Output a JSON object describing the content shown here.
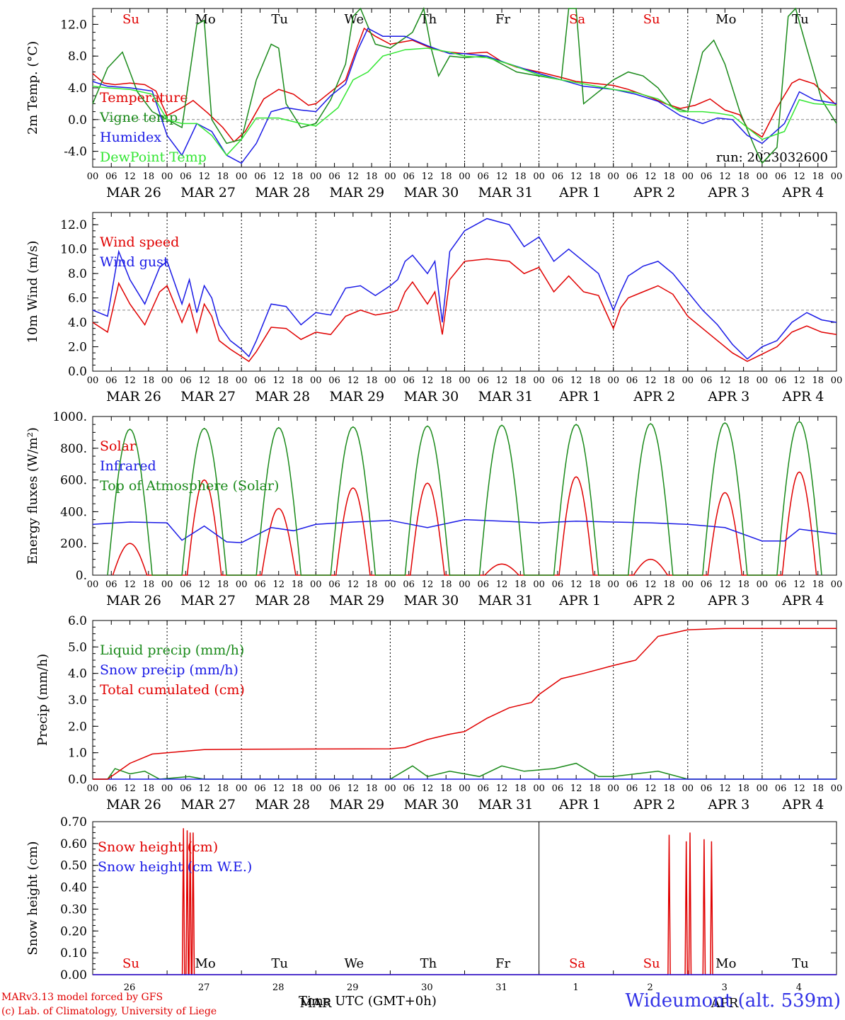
{
  "colors": {
    "red": "#e00000",
    "green": "#1a8a1a",
    "blue": "#1a1ae6",
    "lightgreen": "#33e633",
    "sandbox_ref": "#3232e6"
  },
  "days_top": [
    {
      "label": "Su",
      "color": "#e00000"
    },
    {
      "label": "Mo",
      "color": "#000000"
    },
    {
      "label": "Tu",
      "color": "#000000"
    },
    {
      "label": "We",
      "color": "#000000"
    },
    {
      "label": "Th",
      "color": "#000000"
    },
    {
      "label": "Fr",
      "color": "#000000"
    },
    {
      "label": "Sa",
      "color": "#e00000"
    },
    {
      "label": "Su",
      "color": "#e00000"
    },
    {
      "label": "Mo",
      "color": "#000000"
    },
    {
      "label": "Tu",
      "color": "#000000"
    }
  ],
  "date_labels": [
    "MAR 26",
    "MAR 27",
    "MAR 28",
    "MAR 29",
    "MAR 30",
    "MAR 31",
    "APR  1",
    "APR  2",
    "APR  3",
    "APR  4"
  ],
  "hour_ticks": [
    "00",
    "06",
    "12",
    "18"
  ],
  "hour_end": "00",
  "bottom_day_numbers": [
    "26",
    "27",
    "28",
    "29",
    "30",
    "31",
    "1",
    "2",
    "3",
    "4"
  ],
  "bottom_month_labels": [
    "MAR",
    "APR"
  ],
  "footer": {
    "model_line": "MARv3.13 model forced by GFS",
    "lab_line": "(c) Lab. of Climatology, University of Liege",
    "xaxis_label": "Time UTC (GMT+0h)",
    "station": "Wideumont (alt. 539m)"
  },
  "chart_data": [
    {
      "type": "line",
      "ylabel": "2m Temp. (°C)",
      "ylim": [
        -6,
        14
      ],
      "yticks": [
        "-4.0",
        "0.0",
        "4.0",
        "8.0",
        "12.0"
      ],
      "yticks_v": [
        -4,
        0,
        4,
        8,
        12
      ],
      "ref_line": 0,
      "annotation": "run: 2023032600",
      "x_days": [
        0,
        10
      ],
      "series": [
        {
          "name": "Temperature",
          "color": "#e00000",
          "x": [
            0,
            0.15,
            0.3,
            0.5,
            0.7,
            0.85,
            1.0,
            1.2,
            1.35,
            1.55,
            1.75,
            1.9,
            2.05,
            2.3,
            2.5,
            2.7,
            2.9,
            3.0,
            3.2,
            3.4,
            3.55,
            3.65,
            3.8,
            4.0,
            4.3,
            4.5,
            4.7,
            5.0,
            5.3,
            5.5,
            5.7,
            6.0,
            6.3,
            6.5,
            6.7,
            7.0,
            7.2,
            7.5,
            7.7,
            7.9,
            8.1,
            8.3,
            8.5,
            8.7,
            8.8,
            9.0,
            9.2,
            9.4,
            9.5,
            9.7,
            10.0
          ],
          "y": [
            5.8,
            4.6,
            4.4,
            4.6,
            4.4,
            3.6,
            0.5,
            1.5,
            2.4,
            0.8,
            -1.0,
            -2.8,
            -1.5,
            2.6,
            3.8,
            3.2,
            1.8,
            2.0,
            3.5,
            5.0,
            9.0,
            11.5,
            10.5,
            9.5,
            10.0,
            9.2,
            8.6,
            8.3,
            8.5,
            7.3,
            6.6,
            6.0,
            5.3,
            4.8,
            4.6,
            4.3,
            3.8,
            2.8,
            2.0,
            1.4,
            1.8,
            2.6,
            1.2,
            0.6,
            -1.0,
            -2.2,
            1.5,
            4.6,
            5.1,
            4.5,
            1.8
          ]
        },
        {
          "name": "Vigne temp",
          "color": "#1a8a1a",
          "x": [
            0,
            0.2,
            0.4,
            0.5,
            0.6,
            0.8,
            1.0,
            1.2,
            1.4,
            1.5,
            1.6,
            1.8,
            2.0,
            2.2,
            2.4,
            2.5,
            2.6,
            2.8,
            3.0,
            3.2,
            3.4,
            3.5,
            3.6,
            3.8,
            4.0,
            4.3,
            4.45,
            4.55,
            4.65,
            4.8,
            5.0,
            5.3,
            5.5,
            5.7,
            6.0,
            6.3,
            6.4,
            6.5,
            6.6,
            6.8,
            7.0,
            7.2,
            7.4,
            7.6,
            7.8,
            8.0,
            8.2,
            8.35,
            8.5,
            8.7,
            8.9,
            9.0,
            9.2,
            9.35,
            9.45,
            9.6,
            9.8,
            10.0
          ],
          "y": [
            2.0,
            6.5,
            8.5,
            6.0,
            3.5,
            1.0,
            0.0,
            -1.0,
            12.0,
            12.5,
            0.0,
            -3.0,
            -2.5,
            5.0,
            9.5,
            9.0,
            2.0,
            -1.0,
            -0.5,
            2.5,
            7.0,
            13.0,
            14.0,
            9.5,
            9.0,
            11.0,
            14.0,
            9.0,
            5.5,
            8.0,
            7.8,
            8.0,
            7.0,
            6.0,
            5.5,
            5.0,
            14.0,
            14.0,
            2.0,
            3.5,
            5.0,
            6.0,
            5.5,
            4.0,
            1.5,
            1.0,
            8.5,
            10.0,
            7.0,
            1.0,
            -3.5,
            -5.5,
            -3.5,
            13.0,
            14.0,
            9.0,
            2.5,
            -0.5
          ]
        },
        {
          "name": "Humidex",
          "color": "#1a1ae6",
          "x": [
            0,
            0.2,
            0.5,
            0.8,
            1.0,
            1.2,
            1.4,
            1.6,
            1.8,
            2.0,
            2.2,
            2.4,
            2.6,
            2.8,
            3.0,
            3.2,
            3.4,
            3.55,
            3.7,
            3.9,
            4.2,
            4.5,
            4.8,
            5.0,
            5.3,
            5.6,
            6.0,
            6.3,
            6.6,
            7.0,
            7.3,
            7.6,
            7.9,
            8.2,
            8.4,
            8.6,
            8.8,
            9.0,
            9.3,
            9.5,
            9.7,
            10.0
          ],
          "y": [
            4.8,
            4.2,
            4.0,
            3.6,
            -2.0,
            -4.5,
            -0.5,
            -1.5,
            -4.5,
            -5.5,
            -3.0,
            1.0,
            1.5,
            1.2,
            1.0,
            3.0,
            4.5,
            8.5,
            11.5,
            10.5,
            10.5,
            9.3,
            8.3,
            8.3,
            8.0,
            7.0,
            5.8,
            5.0,
            4.2,
            3.8,
            3.2,
            2.3,
            0.5,
            -0.5,
            0.2,
            0.0,
            -2.0,
            -3.0,
            -0.5,
            3.5,
            2.5,
            2.0
          ]
        },
        {
          "name": "DewPoint Temp",
          "color": "#33e633",
          "x": [
            0,
            0.2,
            0.5,
            0.8,
            1.0,
            1.2,
            1.4,
            1.6,
            1.8,
            2.0,
            2.2,
            2.5,
            2.8,
            3.0,
            3.3,
            3.5,
            3.7,
            3.9,
            4.2,
            4.5,
            4.8,
            5.0,
            5.3,
            5.6,
            6.0,
            6.3,
            6.6,
            7.0,
            7.3,
            7.6,
            7.9,
            8.2,
            8.4,
            8.6,
            8.8,
            9.0,
            9.3,
            9.5,
            9.7,
            10.0
          ],
          "y": [
            4.2,
            4.0,
            3.8,
            3.2,
            0.0,
            -0.5,
            -0.5,
            -2.0,
            -4.5,
            -2.5,
            0.2,
            0.2,
            -0.5,
            -0.8,
            1.5,
            5.0,
            6.0,
            8.0,
            8.8,
            9.0,
            8.5,
            8.0,
            7.8,
            7.0,
            5.6,
            5.0,
            4.5,
            3.8,
            3.4,
            2.6,
            1.0,
            1.0,
            0.8,
            0.5,
            -1.0,
            -2.5,
            -1.5,
            2.5,
            2.0,
            1.8
          ]
        }
      ]
    },
    {
      "type": "line",
      "ylabel": "10m Wind (m/s)",
      "ylim": [
        0,
        13
      ],
      "yticks": [
        "0.0",
        "2.0",
        "4.0",
        "6.0",
        "8.0",
        "10.0",
        "12.0"
      ],
      "yticks_v": [
        0,
        2,
        4,
        6,
        8,
        10,
        12
      ],
      "ref_line": 5,
      "x_days": [
        0,
        10
      ],
      "series": [
        {
          "name": "Wind speed",
          "color": "#e00000",
          "x": [
            0,
            0.2,
            0.35,
            0.5,
            0.7,
            0.9,
            1.0,
            1.2,
            1.3,
            1.4,
            1.5,
            1.6,
            1.7,
            1.85,
            2.0,
            2.1,
            2.2,
            2.4,
            2.6,
            2.8,
            3.0,
            3.2,
            3.4,
            3.6,
            3.8,
            4.0,
            4.1,
            4.2,
            4.3,
            4.5,
            4.6,
            4.7,
            4.8,
            5.0,
            5.3,
            5.6,
            5.8,
            6.0,
            6.2,
            6.4,
            6.6,
            6.8,
            7.0,
            7.1,
            7.2,
            7.4,
            7.6,
            7.8,
            8.0,
            8.2,
            8.4,
            8.6,
            8.8,
            9.0,
            9.2,
            9.4,
            9.6,
            9.8,
            10.0
          ],
          "y": [
            4.0,
            3.2,
            7.2,
            5.5,
            3.8,
            6.5,
            7.0,
            4.0,
            5.5,
            3.2,
            5.5,
            4.5,
            2.5,
            1.8,
            1.2,
            0.8,
            1.6,
            3.6,
            3.5,
            2.6,
            3.2,
            3.0,
            4.5,
            5.0,
            4.6,
            4.8,
            5.0,
            6.5,
            7.3,
            5.5,
            6.5,
            3.0,
            7.5,
            9.0,
            9.2,
            9.0,
            8.0,
            8.5,
            6.5,
            7.8,
            6.5,
            6.2,
            3.5,
            5.2,
            6.0,
            6.5,
            7.0,
            6.3,
            4.5,
            3.5,
            2.5,
            1.5,
            0.8,
            1.4,
            2.0,
            3.2,
            3.7,
            3.2,
            3.0
          ]
        },
        {
          "name": "Wind gust",
          "color": "#1a1ae6",
          "x": [
            0,
            0.2,
            0.35,
            0.5,
            0.7,
            0.9,
            1.0,
            1.2,
            1.3,
            1.4,
            1.5,
            1.6,
            1.7,
            1.85,
            2.0,
            2.1,
            2.2,
            2.4,
            2.6,
            2.8,
            3.0,
            3.2,
            3.4,
            3.6,
            3.8,
            4.0,
            4.1,
            4.2,
            4.3,
            4.5,
            4.6,
            4.7,
            4.8,
            5.0,
            5.3,
            5.6,
            5.8,
            6.0,
            6.2,
            6.4,
            6.6,
            6.8,
            7.0,
            7.1,
            7.2,
            7.4,
            7.6,
            7.8,
            8.0,
            8.2,
            8.4,
            8.6,
            8.8,
            9.0,
            9.2,
            9.4,
            9.6,
            9.8,
            10.0
          ],
          "y": [
            5.0,
            4.5,
            9.8,
            7.5,
            5.5,
            8.5,
            9.0,
            5.5,
            7.5,
            4.8,
            7.0,
            6.0,
            3.8,
            2.5,
            1.8,
            1.2,
            2.5,
            5.5,
            5.3,
            3.8,
            4.8,
            4.6,
            6.8,
            7.0,
            6.2,
            7.0,
            7.5,
            9.0,
            9.5,
            8.0,
            9.0,
            4.0,
            9.8,
            11.5,
            12.5,
            12.0,
            10.2,
            11.0,
            9.0,
            10.0,
            9.0,
            8.0,
            5.0,
            6.5,
            7.8,
            8.6,
            9.0,
            8.0,
            6.5,
            5.0,
            3.8,
            2.2,
            1.0,
            2.0,
            2.5,
            4.0,
            4.8,
            4.2,
            4.0
          ]
        }
      ]
    },
    {
      "type": "line",
      "ylabel": "Energy fluxes (W/m²)",
      "ylim": [
        0,
        1000
      ],
      "yticks": [
        "0.",
        "200.",
        "400.",
        "600.",
        "800.",
        "1000."
      ],
      "yticks_v": [
        0,
        200,
        400,
        600,
        800,
        1000
      ],
      "x_days": [
        0,
        10
      ],
      "series": [
        {
          "name": "Solar",
          "color": "#e00000",
          "daily_peaks": [
            200,
            600,
            420,
            550,
            580,
            70,
            620,
            100,
            520,
            650
          ]
        },
        {
          "name": "Infrared",
          "color": "#1a1ae6",
          "x": [
            0,
            0.5,
            1.0,
            1.2,
            1.5,
            1.8,
            2.0,
            2.4,
            2.7,
            3.0,
            3.5,
            4.0,
            4.5,
            5.0,
            5.5,
            6.0,
            6.5,
            7.0,
            7.5,
            8.0,
            8.5,
            9.0,
            9.3,
            9.5,
            10.0
          ],
          "y": [
            320,
            335,
            330,
            220,
            310,
            210,
            205,
            300,
            280,
            320,
            335,
            345,
            300,
            350,
            340,
            330,
            340,
            335,
            330,
            320,
            300,
            215,
            215,
            290,
            260
          ]
        },
        {
          "name": "Top of Atmosphere (Solar)",
          "color": "#1a8a1a",
          "daily_peaks": [
            920,
            925,
            930,
            935,
            940,
            945,
            950,
            955,
            960,
            968
          ]
        }
      ]
    },
    {
      "type": "line",
      "ylabel": "Precip (mm/h)",
      "ylim": [
        0,
        6
      ],
      "yticks": [
        "0.0",
        "1.0",
        "2.0",
        "3.0",
        "4.0",
        "5.0",
        "6.0"
      ],
      "yticks_v": [
        0,
        1,
        2,
        3,
        4,
        5,
        6
      ],
      "x_days": [
        0,
        10
      ],
      "series": [
        {
          "name": "Liquid precip (mm/h)",
          "color": "#1a8a1a",
          "x": [
            0,
            0.2,
            0.3,
            0.5,
            0.7,
            0.9,
            1.1,
            1.3,
            1.5,
            2.0,
            3.0,
            4.0,
            4.3,
            4.5,
            4.8,
            5.2,
            5.5,
            5.8,
            6.2,
            6.5,
            6.8,
            7.0,
            7.3,
            7.6,
            8.0,
            10.0
          ],
          "y": [
            0,
            0,
            0.4,
            0.2,
            0.3,
            0,
            0.05,
            0.1,
            0,
            0,
            0,
            0,
            0.5,
            0.1,
            0.3,
            0.1,
            0.5,
            0.3,
            0.4,
            0.6,
            0.1,
            0.1,
            0.2,
            0.3,
            0,
            0
          ]
        },
        {
          "name": "Snow precip (mm/h)",
          "color": "#1a1ae6",
          "x": [
            0,
            10
          ],
          "y": [
            0,
            0
          ]
        },
        {
          "name": "Total cumulated (cm)",
          "color": "#e00000",
          "x": [
            0,
            0.2,
            0.5,
            0.8,
            1.0,
            1.5,
            2.0,
            3.0,
            4.0,
            4.2,
            4.5,
            4.8,
            5.0,
            5.3,
            5.6,
            5.9,
            6.0,
            6.3,
            6.6,
            7.0,
            7.3,
            7.6,
            8.0,
            8.5,
            9.0,
            10.0
          ],
          "y": [
            0,
            0,
            0.6,
            0.95,
            1.0,
            1.12,
            1.13,
            1.14,
            1.15,
            1.2,
            1.5,
            1.7,
            1.8,
            2.3,
            2.7,
            2.9,
            3.2,
            3.8,
            4.0,
            4.3,
            4.5,
            5.4,
            5.65,
            5.7,
            5.7,
            5.7
          ]
        }
      ]
    },
    {
      "type": "line",
      "ylabel": "Snow height (cm)",
      "ylim": [
        0,
        0.7
      ],
      "yticks": [
        "0.00",
        "0.10",
        "0.20",
        "0.30",
        "0.40",
        "0.50",
        "0.60",
        "0.70"
      ],
      "yticks_v": [
        0,
        0.1,
        0.2,
        0.3,
        0.4,
        0.5,
        0.6,
        0.7
      ],
      "x_days": [
        0,
        10
      ],
      "series": [
        {
          "name": "Snow height (cm)",
          "color": "#e00000",
          "spikes": [
            [
              1.22,
              0.67
            ],
            [
              1.27,
              0.66
            ],
            [
              1.31,
              0.65
            ],
            [
              1.35,
              0.65
            ],
            [
              7.75,
              0.64
            ],
            [
              7.98,
              0.61
            ],
            [
              8.03,
              0.65
            ],
            [
              8.22,
              0.62
            ],
            [
              8.32,
              0.61
            ]
          ]
        },
        {
          "name": "Snow height (cm W.E.)",
          "color": "#1a1ae6",
          "spikes": []
        }
      ]
    }
  ]
}
